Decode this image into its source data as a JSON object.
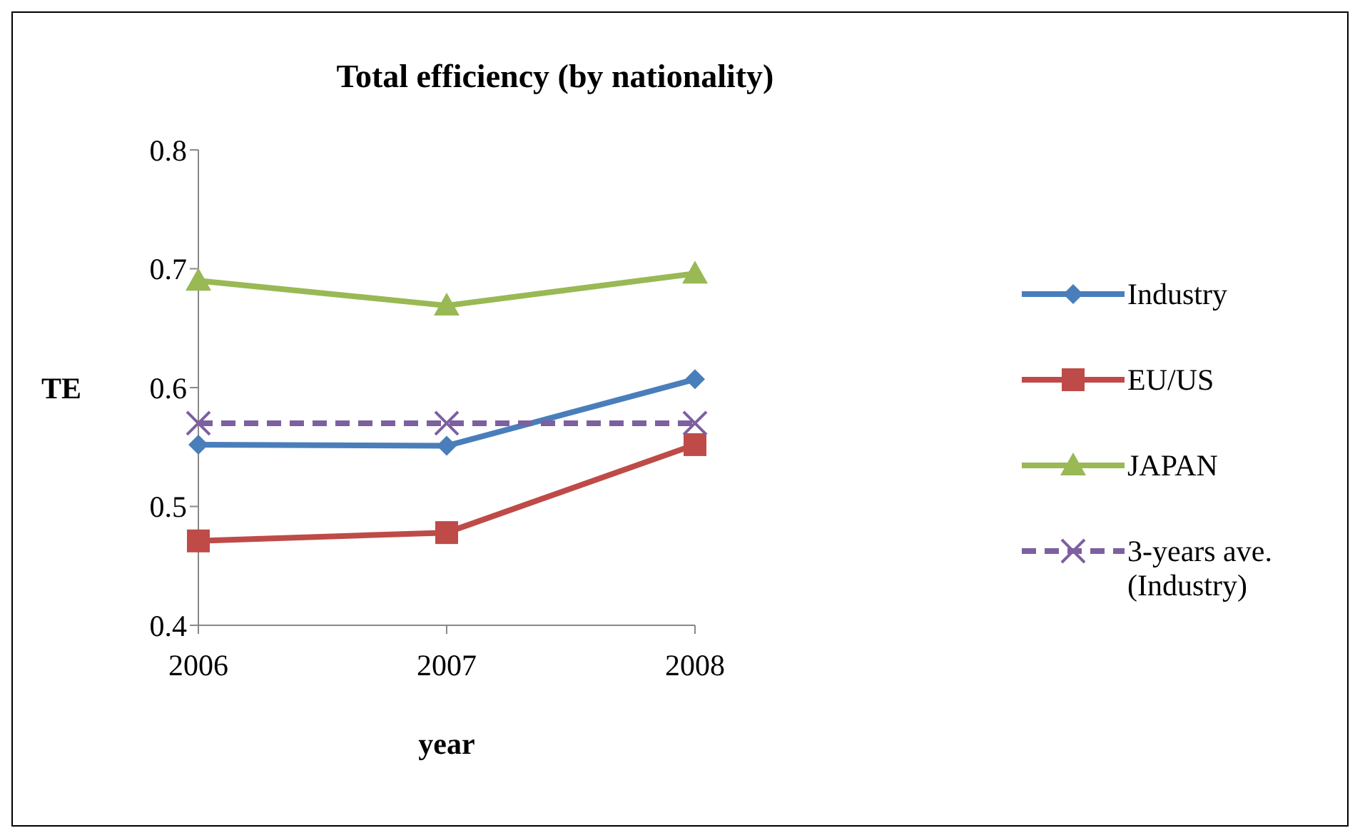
{
  "chart_data": {
    "type": "line",
    "title": "Total efficiency (by nationality)",
    "xlabel": "year",
    "ylabel": "TE",
    "categories": [
      "2006",
      "2007",
      "2008"
    ],
    "series": [
      {
        "name": "Industry",
        "color": "#4a7ebb",
        "values": [
          0.552,
          0.551,
          0.607
        ],
        "marker": "diamond"
      },
      {
        "name": "EU/US",
        "color": "#be4b48",
        "values": [
          0.471,
          0.478,
          0.552
        ],
        "marker": "square"
      },
      {
        "name": "JAPAN",
        "color": "#98b954",
        "values": [
          0.69,
          0.669,
          0.696
        ],
        "marker": "triangle"
      },
      {
        "name": "3-years ave.(Industry)",
        "color": "#7d60a0",
        "values": [
          0.57,
          0.57,
          0.57
        ],
        "marker": "cross",
        "line_style": "dashed"
      }
    ],
    "ylim": [
      0.4,
      0.8
    ],
    "yticks": [
      0.4,
      0.5,
      0.6,
      0.7,
      0.8
    ],
    "grid": false,
    "legend": "right"
  }
}
